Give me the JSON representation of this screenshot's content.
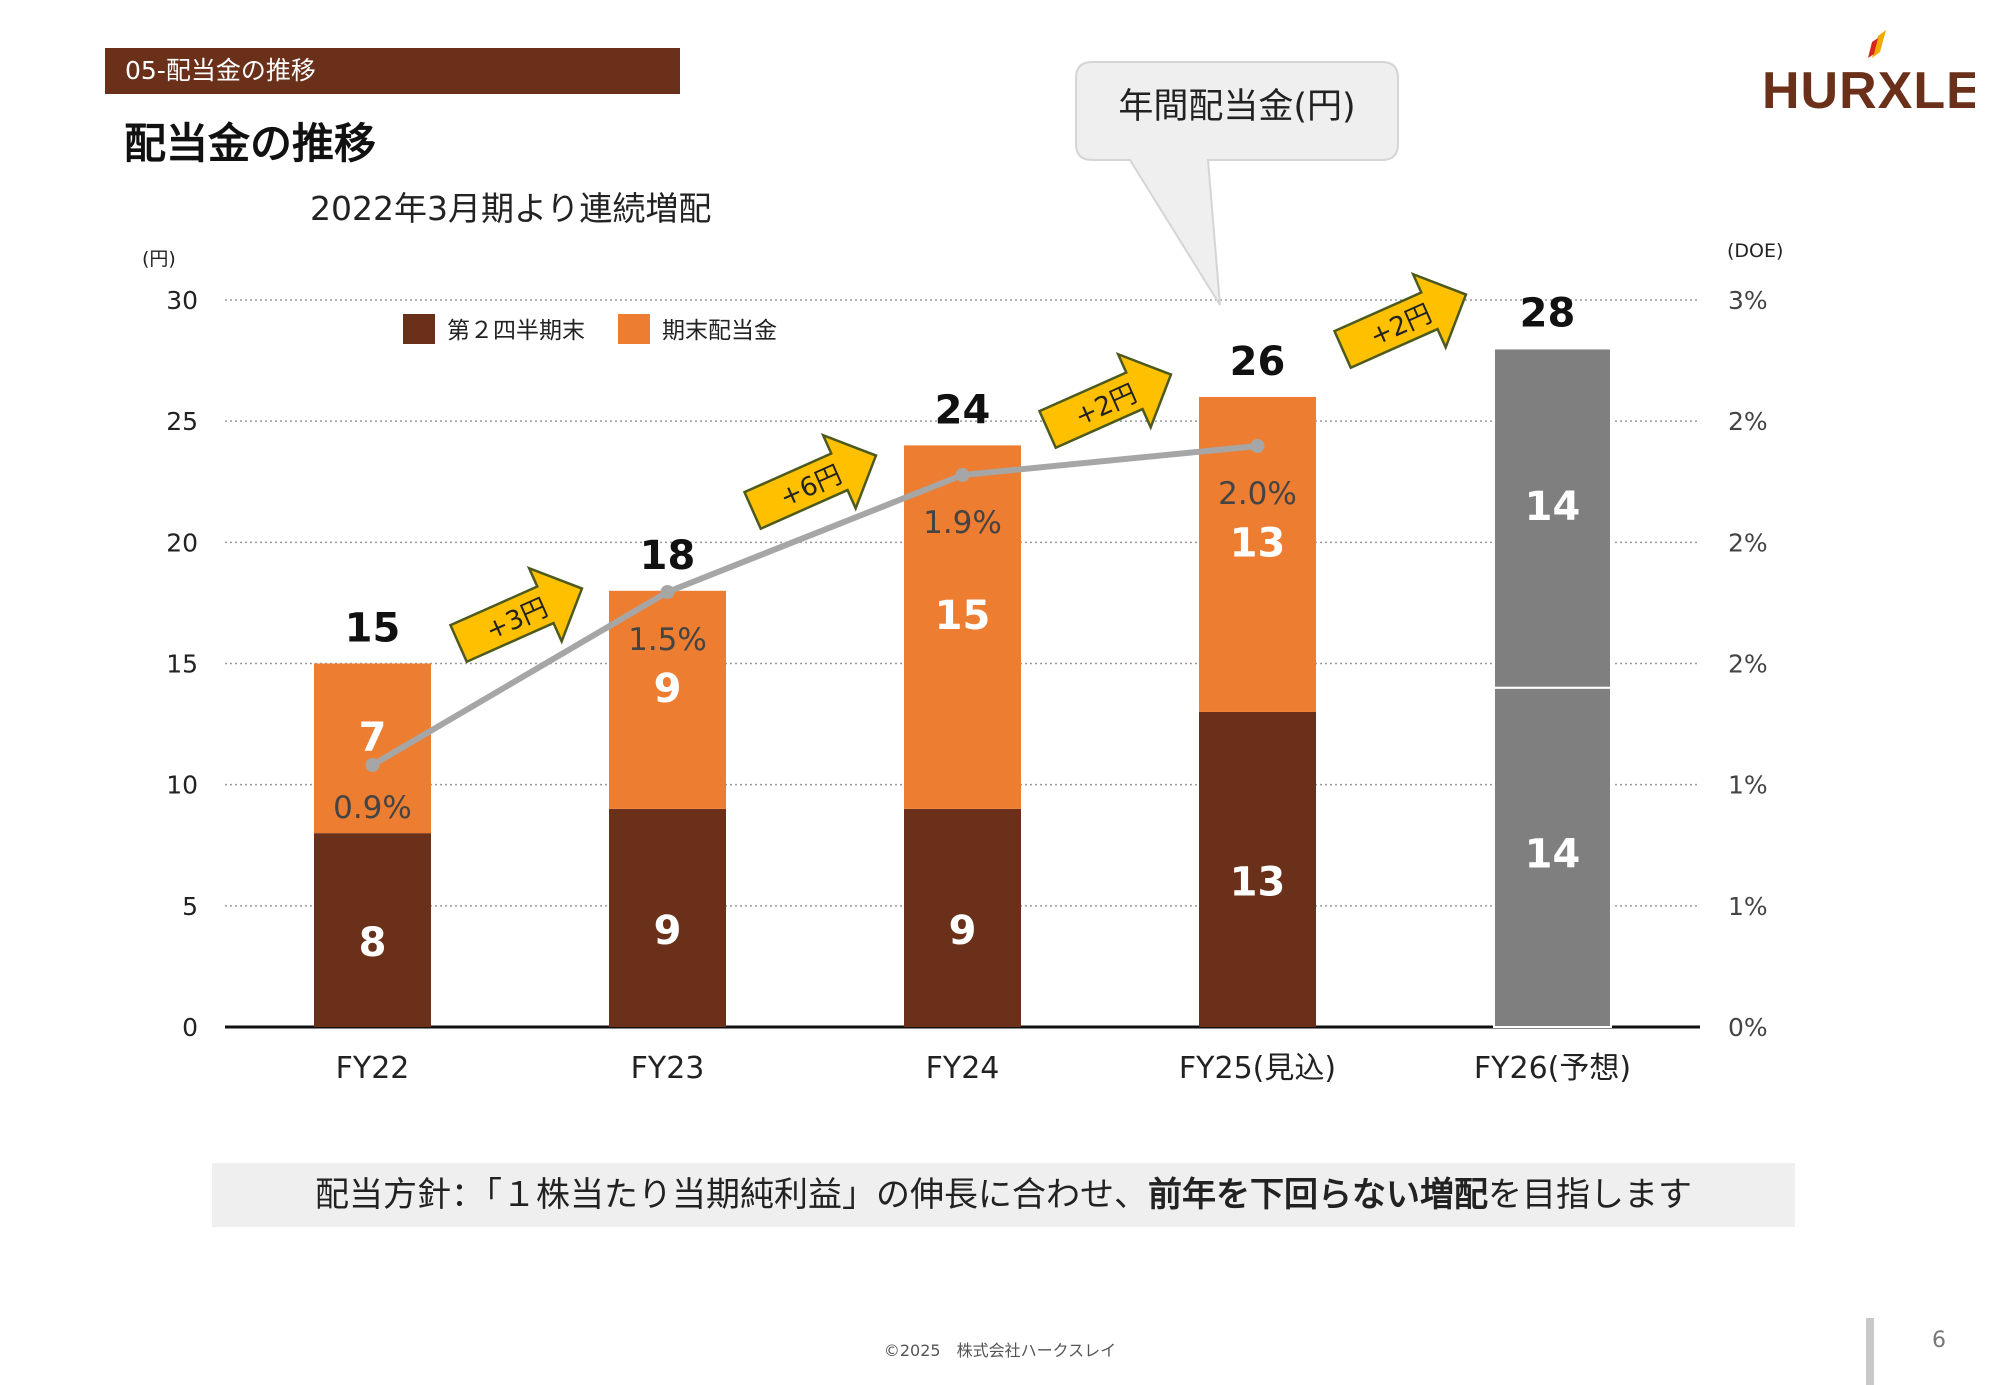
{
  "header": {
    "section_label": "05-配当金の推移",
    "title": "配当金の推移",
    "subtitle": "2022年3月期より連続増配",
    "logo_text": "HURXLEY"
  },
  "callout": "年間配当金(円)",
  "chart_data": {
    "type": "bar",
    "stacked": true,
    "categories": [
      "FY22",
      "FY23",
      "FY24",
      "FY25(見込)",
      "FY26(予想)"
    ],
    "series": [
      {
        "name": "第２四半期末",
        "values": [
          8,
          9,
          9,
          13,
          14
        ],
        "color": "#6a3019"
      },
      {
        "name": "期末配当金",
        "values": [
          7,
          9,
          15,
          13,
          14
        ],
        "color": "#ed7d31"
      }
    ],
    "forecast_color": "#7f7f7f",
    "totals": [
      15,
      18,
      24,
      26,
      28
    ],
    "doe_line": {
      "values": [
        0.9,
        1.5,
        1.9,
        2.0
      ],
      "labels": [
        "0.9%",
        "1.5%",
        "1.9%",
        "2.0%"
      ],
      "color": "#a6a6a6"
    },
    "increments": [
      "+3円",
      "+6円",
      "+2円",
      "+2円"
    ],
    "y_left": {
      "unit": "(円)",
      "ylim": [
        0,
        30
      ],
      "ticks": [
        "0",
        "5",
        "10",
        "15",
        "20",
        "25",
        "30"
      ]
    },
    "y_right": {
      "unit": "(DOE)",
      "ticks": [
        "0%",
        "1%",
        "1%",
        "2%",
        "2%",
        "2%",
        "3%"
      ]
    },
    "grid": true,
    "legend_position": "top-left"
  },
  "policy": {
    "prefix": "配当方針：「１株当たり当期純利益」の伸長に合わせ、",
    "bold": "前年を下回らない増配",
    "suffix": "を目指します"
  },
  "footer": {
    "copyright": "©2025　株式会社ハークスレイ",
    "page_number": "6"
  }
}
